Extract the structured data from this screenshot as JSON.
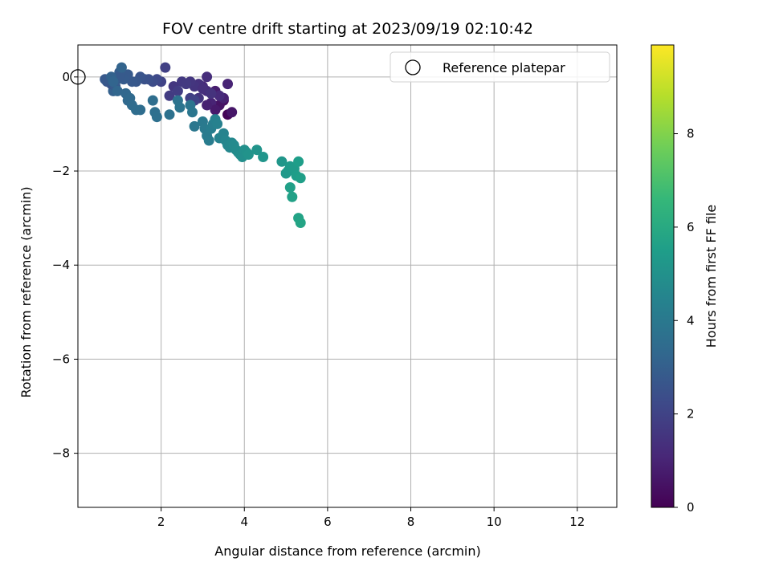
{
  "chart_data": {
    "type": "scatter",
    "title": "FOV centre drift starting at 2023/09/19 02:10:42",
    "xlabel": "Angular distance from reference (arcmin)",
    "ylabel": "Rotation from reference (arcmin)",
    "xlim": [
      0.0,
      12.95
    ],
    "ylim": [
      -9.15,
      0.68
    ],
    "xticks": [
      2,
      4,
      6,
      8,
      10,
      12
    ],
    "yticks": [
      0,
      -2,
      -4,
      -6,
      -8
    ],
    "grid": true,
    "legend": {
      "placement": "top-right",
      "entries": [
        "Reference platepar"
      ]
    },
    "reference_point": {
      "x": 0.0,
      "y": 0.0
    },
    "colorbar": {
      "label": "Hours from first FF file",
      "colormap": "viridis",
      "range": [
        0,
        9.9
      ],
      "ticks": [
        0,
        2,
        4,
        6,
        8
      ]
    },
    "colormap_stops": [
      "#440154",
      "#482878",
      "#3e4989",
      "#31688e",
      "#26828e",
      "#1f9e89",
      "#35b779",
      "#6ece58",
      "#b5de2b",
      "#fde725"
    ],
    "series": [
      {
        "x": [
          3.6,
          3.5,
          3.4,
          3.7,
          3.3,
          3.5,
          3.2,
          3.0,
          3.4,
          3.1,
          2.9,
          3.6,
          3.3,
          3.1,
          2.8,
          3.0,
          2.7,
          3.2,
          2.5,
          2.9,
          2.3,
          3.1,
          2.1,
          2.6,
          2.2,
          2.4,
          2.7,
          2.8,
          2.0,
          1.9,
          1.8,
          1.7,
          1.6,
          1.5,
          1.4,
          1.3,
          1.2,
          1.1,
          1.0,
          0.95,
          0.9,
          0.85,
          0.8,
          0.75,
          0.7,
          0.65,
          1.0,
          0.9,
          0.8,
          1.05,
          0.85,
          0.95,
          1.15,
          1.2,
          1.25,
          1.3,
          1.4,
          1.5,
          1.8,
          1.85,
          1.9,
          2.2,
          2.4,
          2.45,
          2.7,
          2.75,
          2.8,
          3.0,
          3.05,
          3.1,
          3.15,
          3.2,
          3.25,
          3.3,
          3.35,
          3.4,
          3.5,
          3.55,
          3.6,
          3.65,
          3.7,
          3.75,
          3.8,
          3.85,
          3.9,
          3.95,
          4.0,
          4.05,
          4.1,
          4.3,
          4.45,
          4.9,
          5.0,
          5.05,
          5.1,
          5.2,
          5.25,
          5.3,
          5.35,
          5.1,
          5.15,
          5.3,
          5.35
        ],
        "y": [
          -0.8,
          -0.5,
          -0.6,
          -0.75,
          -0.3,
          -0.45,
          -0.55,
          -0.2,
          -0.4,
          -0.0,
          -0.15,
          -0.15,
          -0.7,
          -0.3,
          -0.2,
          -0.25,
          -0.1,
          -0.35,
          -0.1,
          -0.45,
          -0.2,
          -0.6,
          0.2,
          -0.15,
          -0.4,
          -0.3,
          -0.45,
          -0.5,
          -0.1,
          -0.05,
          -0.1,
          -0.05,
          -0.05,
          0.0,
          -0.1,
          -0.1,
          0.05,
          -0.05,
          0.1,
          -0.05,
          -0.2,
          -0.3,
          -0.15,
          -0.05,
          -0.1,
          -0.05,
          0.0,
          -0.2,
          0.0,
          0.2,
          -0.1,
          -0.3,
          -0.35,
          -0.5,
          -0.45,
          -0.6,
          -0.7,
          -0.7,
          -0.5,
          -0.75,
          -0.85,
          -0.8,
          -0.5,
          -0.65,
          -0.6,
          -0.75,
          -1.05,
          -0.95,
          -1.1,
          -1.25,
          -1.35,
          -1.1,
          -1.0,
          -0.9,
          -1.0,
          -1.3,
          -1.2,
          -1.35,
          -1.45,
          -1.5,
          -1.4,
          -1.45,
          -1.55,
          -1.6,
          -1.65,
          -1.7,
          -1.55,
          -1.6,
          -1.65,
          -1.55,
          -1.7,
          -1.8,
          -2.05,
          -2.0,
          -1.9,
          -1.95,
          -2.1,
          -1.8,
          -2.15,
          -2.35,
          -2.55,
          -3.0,
          -3.1
        ],
        "t": [
          0.1,
          0.3,
          0.5,
          0.6,
          0.8,
          0.9,
          1.0,
          1.1,
          1.2,
          1.3,
          1.4,
          1.0,
          0.7,
          1.2,
          1.5,
          1.35,
          1.55,
          1.45,
          1.65,
          1.5,
          1.6,
          0.9,
          1.9,
          1.7,
          1.75,
          1.8,
          1.85,
          1.95,
          2.0,
          2.2,
          2.3,
          2.4,
          2.5,
          2.6,
          2.7,
          2.75,
          2.8,
          2.85,
          2.9,
          2.95,
          3.0,
          3.05,
          2.6,
          2.65,
          2.7,
          2.75,
          2.8,
          2.85,
          3.1,
          3.15,
          3.2,
          3.25,
          3.3,
          3.35,
          3.4,
          3.45,
          3.5,
          3.5,
          3.55,
          3.6,
          3.65,
          3.7,
          3.75,
          3.8,
          3.85,
          3.9,
          3.95,
          4.0,
          4.05,
          4.1,
          4.15,
          4.2,
          4.25,
          4.3,
          4.35,
          4.4,
          4.45,
          4.5,
          4.55,
          4.6,
          4.65,
          4.7,
          4.75,
          4.8,
          4.85,
          4.9,
          4.95,
          5.0,
          5.05,
          5.1,
          5.15,
          5.2,
          5.25,
          5.3,
          5.35,
          5.4,
          5.45,
          5.5,
          5.55,
          5.6,
          5.65,
          5.7,
          5.75
        ]
      }
    ]
  }
}
